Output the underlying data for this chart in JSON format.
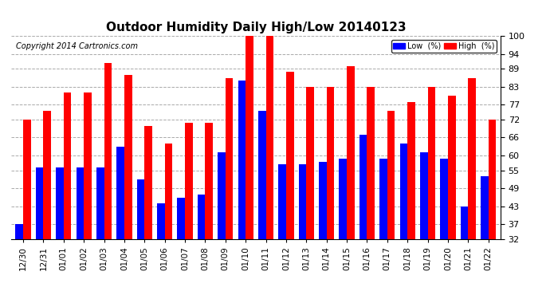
{
  "title": "Outdoor Humidity Daily High/Low 20140123",
  "copyright": "Copyright 2014 Cartronics.com",
  "dates": [
    "12/30",
    "12/31",
    "01/01",
    "01/02",
    "01/03",
    "01/04",
    "01/05",
    "01/06",
    "01/07",
    "01/08",
    "01/09",
    "01/10",
    "01/11",
    "01/12",
    "01/13",
    "01/14",
    "01/15",
    "01/16",
    "01/17",
    "01/18",
    "01/19",
    "01/20",
    "01/21",
    "01/22"
  ],
  "high_values": [
    72,
    75,
    81,
    81,
    91,
    87,
    70,
    64,
    71,
    71,
    86,
    100,
    100,
    88,
    83,
    83,
    90,
    83,
    75,
    78,
    83,
    80,
    86,
    72
  ],
  "low_values": [
    37,
    56,
    56,
    56,
    56,
    63,
    52,
    44,
    46,
    47,
    61,
    85,
    75,
    57,
    57,
    58,
    59,
    67,
    59,
    64,
    61,
    59,
    43,
    53
  ],
  "high_color": "#ff0000",
  "low_color": "#0000ff",
  "bg_color": "#ffffff",
  "yticks": [
    32,
    37,
    43,
    49,
    55,
    60,
    66,
    72,
    77,
    83,
    89,
    94,
    100
  ],
  "ylim": [
    32,
    100
  ],
  "ymin": 32,
  "bar_width": 0.38,
  "legend_low_label": "Low  (%)",
  "legend_high_label": "High  (%)"
}
